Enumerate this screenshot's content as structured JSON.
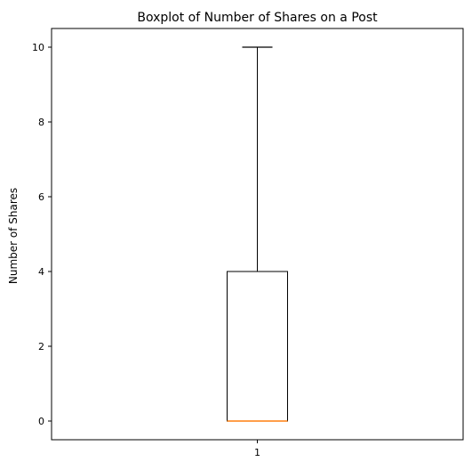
{
  "chart_data": {
    "type": "boxplot",
    "title": "Boxplot of Number of Shares on a Post",
    "xlabel": "",
    "ylabel": "Number of Shares",
    "categories": [
      "1"
    ],
    "ylim": [
      -0.5,
      10.5
    ],
    "yticks": [
      0,
      2,
      4,
      6,
      8,
      10
    ],
    "grid": false,
    "boxes": [
      {
        "label": "1",
        "whisker_low": 0,
        "q1": 0,
        "median": 0,
        "q3": 4,
        "whisker_high": 10
      }
    ],
    "colors": {
      "box": "#000000",
      "median": "#ff7f0e",
      "axes": "#000000"
    }
  }
}
